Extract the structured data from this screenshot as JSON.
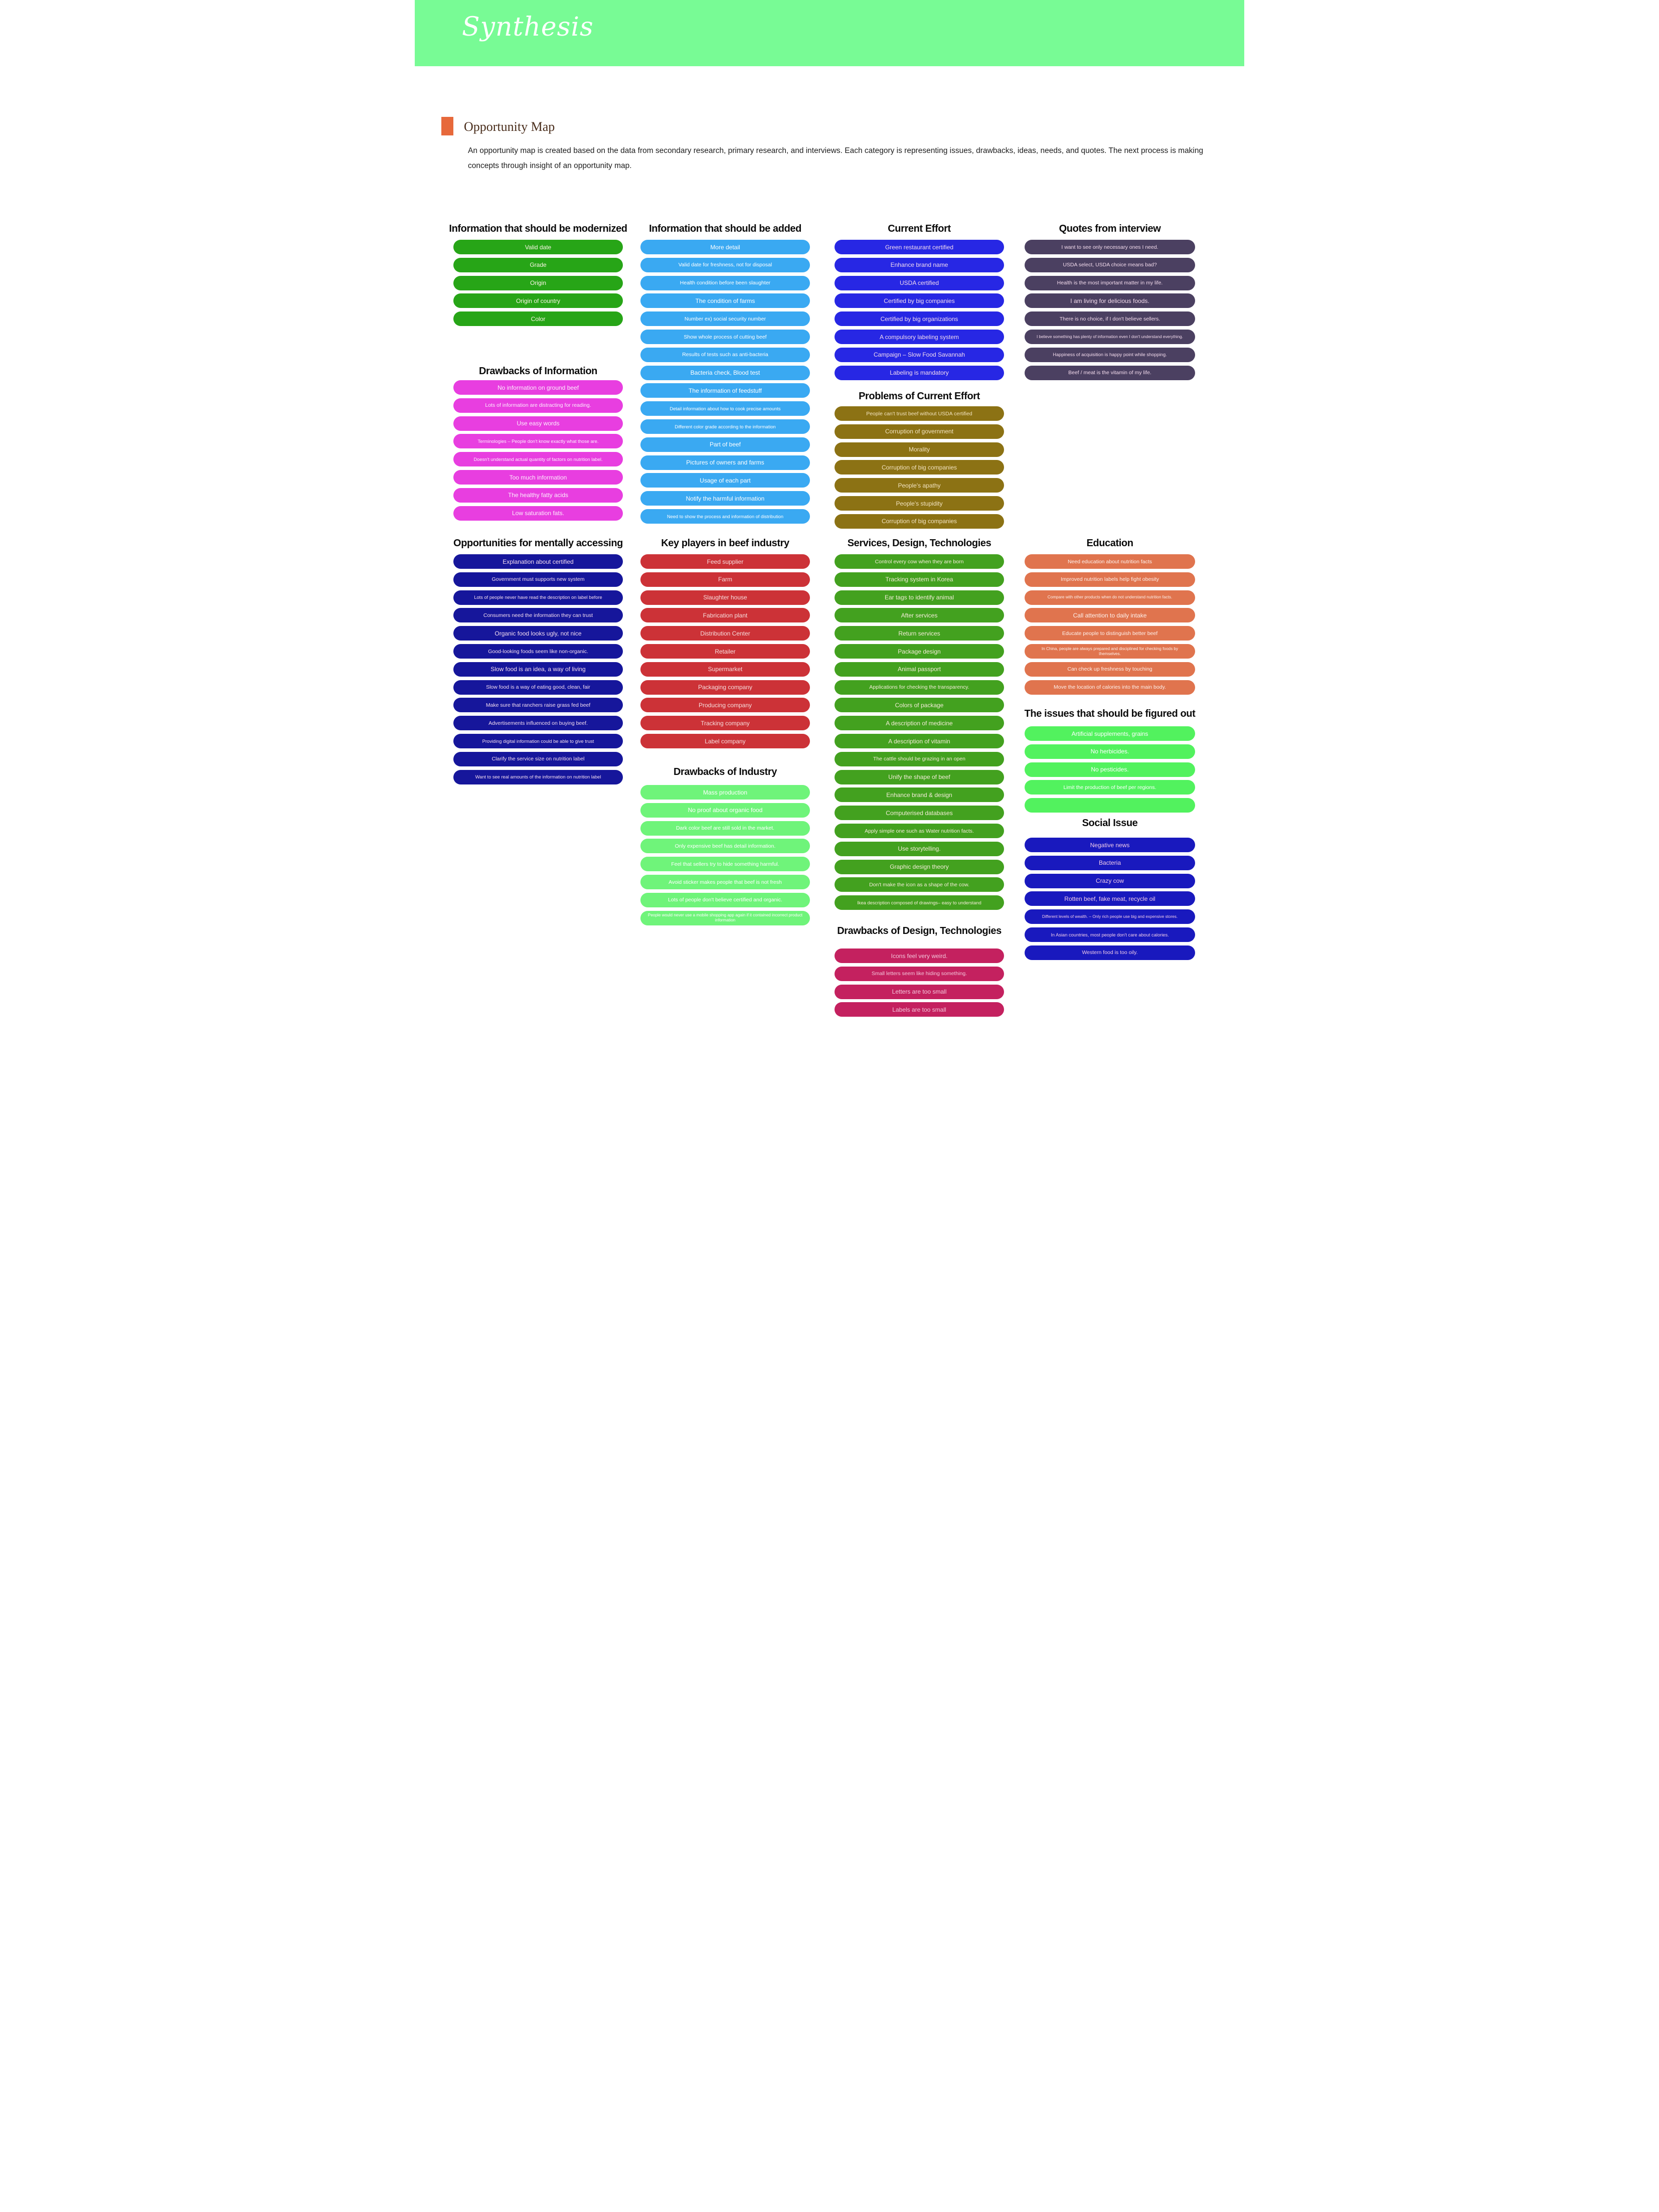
{
  "header": {
    "title": "Synthesis",
    "banner_color": "#78fb95"
  },
  "intro": {
    "marker_color": "#e7693b",
    "title": "Opportunity Map",
    "description": "An opportunity map is created based on the data from secondary research, primary research, and interviews. Each category is representing issues, drawbacks, ideas, needs, and quotes. The next process is making concepts through insight of an opportunity map."
  },
  "sections": [
    {
      "id": "modernized",
      "title": "Information that should be modernized",
      "pill_color": "#27a517",
      "text_color": "#fdf6e8",
      "pills": [
        {
          "text": "Valid date",
          "size": "n"
        },
        {
          "text": "Grade",
          "size": "n"
        },
        {
          "text": "Origin",
          "size": "n"
        },
        {
          "text": "Origin of country",
          "size": "n"
        },
        {
          "text": "Color",
          "size": "n"
        }
      ]
    },
    {
      "id": "drawbacks_info",
      "title": "Drawbacks of Information",
      "pill_color": "#e83ee0",
      "text_color": "#fdeffd",
      "pills": [
        {
          "text": "No information on ground beef",
          "size": "n"
        },
        {
          "text": "Lots of information are distracting for reading.",
          "size": "s"
        },
        {
          "text": "Use easy words",
          "size": "n"
        },
        {
          "text": "Terminologies – People don't know exactly what those are.",
          "size": "xs"
        },
        {
          "text": "Doesn't understand actual quantity of factors on nutrition label.",
          "size": "xs"
        },
        {
          "text": "Too much information",
          "size": "n"
        },
        {
          "text": "The healthy fatty acids",
          "size": "n"
        },
        {
          "text": "Low saturation fats.",
          "size": "n"
        }
      ]
    },
    {
      "id": "opportunities",
      "title": "Opportunities for mentally accessing",
      "pill_color": "#16169b",
      "text_color": "#f4ddf0",
      "pills": [
        {
          "text": "Explanation about certified",
          "size": "n"
        },
        {
          "text": "Government must supports new system",
          "size": "s"
        },
        {
          "text": "Lots of people never have read the description on label before",
          "size": "xs"
        },
        {
          "text": "Consumers need the information they can trust",
          "size": "s"
        },
        {
          "text": "Organic food looks ugly, not nice",
          "size": "n"
        },
        {
          "text": "Good-looking foods seem like non-organic.",
          "size": "s"
        },
        {
          "text": "Slow food is an idea, a way of living",
          "size": "n"
        },
        {
          "text": "Slow food is a way of eating good, clean, fair",
          "size": "s"
        },
        {
          "text": "Make sure that ranchers raise grass fed beef",
          "size": "s"
        },
        {
          "text": "Advertisements influenced on buying beef.",
          "size": "s"
        },
        {
          "text": "Providing digital information could be able to give trust",
          "size": "xs"
        },
        {
          "text": "Clarify the service size on nutrition label",
          "size": "s"
        },
        {
          "text": "Want to see real amounts of the information on nutrition label",
          "size": "xs"
        }
      ]
    },
    {
      "id": "info_added",
      "title": "Information that should be added",
      "pill_color": "#3aa9f2",
      "text_color": "#ffffff",
      "pills": [
        {
          "text": "More detail",
          "size": "n"
        },
        {
          "text": "Valid date for freshness, not for disposal",
          "size": "s"
        },
        {
          "text": "Health condition before been slaughter",
          "size": "s"
        },
        {
          "text": "The condition of farms",
          "size": "n"
        },
        {
          "text": "Number ex) social security number",
          "size": "s"
        },
        {
          "text": "Show whole process of cutting beef",
          "size": "s"
        },
        {
          "text": "Results of tests such as anti-bacteria",
          "size": "s"
        },
        {
          "text": "Bacteria check, Blood test",
          "size": "n"
        },
        {
          "text": "The information of feedstuff",
          "size": "n"
        },
        {
          "text": "Detail information about how to cook precise amounts",
          "size": "xs"
        },
        {
          "text": "Different color grade according to the information",
          "size": "xs"
        },
        {
          "text": "Part of beef",
          "size": "n"
        },
        {
          "text": "Pictures of owners and farms",
          "size": "n"
        },
        {
          "text": "Usage of each part",
          "size": "n"
        },
        {
          "text": "Notify the harmful information",
          "size": "n"
        },
        {
          "text": "Need to show the process and information of distribution",
          "size": "xs"
        }
      ]
    },
    {
      "id": "key_players",
      "title": "Key players in beef industry",
      "pill_color": "#cc3237",
      "text_color": "#f6dede",
      "pills": [
        {
          "text": "Feed supplier",
          "size": "n"
        },
        {
          "text": "Farm",
          "size": "n"
        },
        {
          "text": "Slaughter house",
          "size": "n"
        },
        {
          "text": "Fabrication plant",
          "size": "n"
        },
        {
          "text": "Distribution Center",
          "size": "n"
        },
        {
          "text": "Retailer",
          "size": "n"
        },
        {
          "text": "Supermarket",
          "size": "n"
        },
        {
          "text": "Packaging company",
          "size": "n"
        },
        {
          "text": "Producing company",
          "size": "n"
        },
        {
          "text": "Tracking company",
          "size": "n"
        },
        {
          "text": "Label company",
          "size": "n"
        }
      ]
    },
    {
      "id": "drawbacks_industry",
      "title": "Drawbacks of Industry",
      "pill_color": "#6ff47a",
      "text_color": "#ffffff",
      "pills": [
        {
          "text": "Mass production",
          "size": "n"
        },
        {
          "text": "No proof about organic food",
          "size": "n"
        },
        {
          "text": "Dark color beef are still sold in the market.",
          "size": "s"
        },
        {
          "text": "Only expensive beef has detail information.",
          "size": "s"
        },
        {
          "text": "Feel that sellers try to hide something harmful.",
          "size": "s"
        },
        {
          "text": "Avoid sticker makes people that beef is not fresh",
          "size": "s"
        },
        {
          "text": "Lots of people don't believe certified and organic.",
          "size": "s"
        },
        {
          "text": "People would never use a mobile shopping app again if it contained incorrect product information",
          "size": "xxs"
        }
      ]
    },
    {
      "id": "current_effort",
      "title": "Current Effort",
      "pill_color": "#2727e4",
      "text_color": "#f3dcef",
      "pills": [
        {
          "text": "Green restaurant certified",
          "size": "n"
        },
        {
          "text": "Enhance brand name",
          "size": "n"
        },
        {
          "text": "USDA certified",
          "size": "n"
        },
        {
          "text": "Certified by big companies",
          "size": "n"
        },
        {
          "text": "Certified by big organizations",
          "size": "n"
        },
        {
          "text": "A compulsory labeling system",
          "size": "n"
        },
        {
          "text": "Campaign – Slow Food Savannah",
          "size": "n"
        },
        {
          "text": "Labeling is mandatory",
          "size": "n"
        }
      ]
    },
    {
      "id": "problems_effort",
      "title": "Problems of Current Effort",
      "pill_color": "#8c7214",
      "text_color": "#f2e3c0",
      "pills": [
        {
          "text": "People can't trust beef without USDA certified",
          "size": "s"
        },
        {
          "text": "Corruption of government",
          "size": "n"
        },
        {
          "text": "Morality",
          "size": "n"
        },
        {
          "text": "Corruption of big companies",
          "size": "n"
        },
        {
          "text": "People's apathy",
          "size": "n"
        },
        {
          "text": "People's stupidity",
          "size": "n"
        },
        {
          "text": "Corruption of big companies",
          "size": "n"
        }
      ]
    },
    {
      "id": "services",
      "title": "Services, Design, Technologies",
      "pill_color": "#43a11f",
      "text_color": "#f4ecd8",
      "pills": [
        {
          "text": "Control every cow when they are born",
          "size": "s"
        },
        {
          "text": "Tracking system in Korea",
          "size": "n"
        },
        {
          "text": "Ear tags to identify animal",
          "size": "n"
        },
        {
          "text": "After services",
          "size": "n"
        },
        {
          "text": "Return services",
          "size": "n"
        },
        {
          "text": "Package design",
          "size": "n"
        },
        {
          "text": "Animal passport",
          "size": "n"
        },
        {
          "text": "Applications for checking the transparency.",
          "size": "s"
        },
        {
          "text": "Colors of package",
          "size": "n"
        },
        {
          "text": "A description of medicine",
          "size": "n"
        },
        {
          "text": "A description of vitamin",
          "size": "n"
        },
        {
          "text": "The cattle should be grazing in an open",
          "size": "s"
        },
        {
          "text": "Unify the shape of beef",
          "size": "n"
        },
        {
          "text": "Enhance brand & design",
          "size": "n"
        },
        {
          "text": "Computerised databases",
          "size": "n"
        },
        {
          "text": "Apply simple one such as Water nutrition facts.",
          "size": "s"
        },
        {
          "text": "Use storytelling.",
          "size": "n"
        },
        {
          "text": "Graphic design theory",
          "size": "n"
        },
        {
          "text": "Don't make the icon as a shape of the cow.",
          "size": "s"
        },
        {
          "text": "Ikea description composed of drawings– easy to understand",
          "size": "xs"
        }
      ]
    },
    {
      "id": "drawbacks_design",
      "title": "Drawbacks of Design, Technologies",
      "pill_color": "#c4215f",
      "text_color": "#f3c6db",
      "pills": [
        {
          "text": "Icons feel very weird.",
          "size": "n"
        },
        {
          "text": "Small letters seem like hiding something.",
          "size": "s"
        },
        {
          "text": "Letters are too small",
          "size": "n"
        },
        {
          "text": "Labels are too small",
          "size": "n"
        }
      ]
    },
    {
      "id": "quotes",
      "title": "Quotes from interview",
      "pill_color": "#4b4061",
      "text_color": "#f2daec",
      "pills": [
        {
          "text": "I want to see only necessary ones I need.",
          "size": "s"
        },
        {
          "text": "USDA select, USDA choice means bad?",
          "size": "s"
        },
        {
          "text": "Health is the most important matter in my life.",
          "size": "s"
        },
        {
          "text": "I am living for delicious foods.",
          "size": "n"
        },
        {
          "text": "There is no choice, if I don't believe sellers.",
          "size": "s"
        },
        {
          "text": "I believe something has plenty of information even I don't understand everything.",
          "size": "xxs"
        },
        {
          "text": "Happiness of acquisition is happy point while shopping.",
          "size": "xs"
        },
        {
          "text": "Beef / meat is the vitamin of my life.",
          "size": "s"
        }
      ]
    },
    {
      "id": "education",
      "title": "Education",
      "pill_color": "#e0744e",
      "text_color": "#fdf1ec",
      "pills": [
        {
          "text": "Need education about nutrition facts",
          "size": "s"
        },
        {
          "text": "Improved nutrition labels help fight obesity",
          "size": "s"
        },
        {
          "text": "Compare with other products when do not understand nutrition facts.",
          "size": "xxs"
        },
        {
          "text": "Call attention to daily intake",
          "size": "n"
        },
        {
          "text": "Educate people to distinguish better beef",
          "size": "s"
        },
        {
          "text": "In China, people are always prepared and disciplined for checking foods by themselves.",
          "size": "xxs"
        },
        {
          "text": "Can check up freshness by touching",
          "size": "s"
        },
        {
          "text": "Move the location of calories into the main body.",
          "size": "s"
        }
      ]
    },
    {
      "id": "issues",
      "title": "The issues that should be figured out",
      "pill_color": "#52f25e",
      "text_color": "#ffffff",
      "pills": [
        {
          "text": "Artificial supplements, grains",
          "size": "n"
        },
        {
          "text": "No herbicides.",
          "size": "n"
        },
        {
          "text": "No pesticides.",
          "size": "n"
        },
        {
          "text": "Limit the production of beef per regions.",
          "size": "s"
        },
        {
          "text": "",
          "size": "n"
        }
      ]
    },
    {
      "id": "social",
      "title": "Social Issue",
      "pill_color": "#1919be",
      "text_color": "#f0cbe8",
      "pills": [
        {
          "text": "Negative news",
          "size": "n"
        },
        {
          "text": "Bacteria",
          "size": "n"
        },
        {
          "text": "Crazy cow",
          "size": "n"
        },
        {
          "text": "Rotten beef, fake meat, recycle oil",
          "size": "n"
        },
        {
          "text": "Different levels of wealth. – Only rich people use big and expensive stores.",
          "size": "xxs"
        },
        {
          "text": "In Asian countries, most people don't care about calories.",
          "size": "xs"
        },
        {
          "text": "Western food is too oily.",
          "size": "s"
        }
      ]
    }
  ]
}
